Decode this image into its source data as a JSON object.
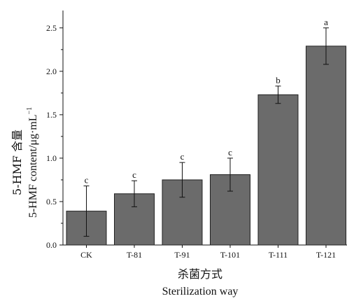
{
  "chart_data": {
    "type": "bar",
    "categories": [
      "CK",
      "T-81",
      "T-91",
      "T-101",
      "T-111",
      "T-121"
    ],
    "values": [
      0.39,
      0.59,
      0.75,
      0.81,
      1.73,
      2.29
    ],
    "error": [
      0.29,
      0.15,
      0.2,
      0.19,
      0.1,
      0.21
    ],
    "significance": [
      "c",
      "c",
      "c",
      "c",
      "b",
      "a"
    ],
    "ylim": [
      0,
      2.7
    ],
    "yticks": [
      "0.0",
      "0.5",
      "1.0",
      "1.5",
      "2.0",
      "2.5"
    ],
    "ylabel_cn": "5-HMF 含量",
    "ylabel_en": "5-HMF  content/μg·mL",
    "ylabel_en_sup": "−1",
    "xlabel_cn": "杀菌方式",
    "xlabel_en": "Sterilization  way",
    "bar_color": "#6b6b6b",
    "grid": false
  }
}
